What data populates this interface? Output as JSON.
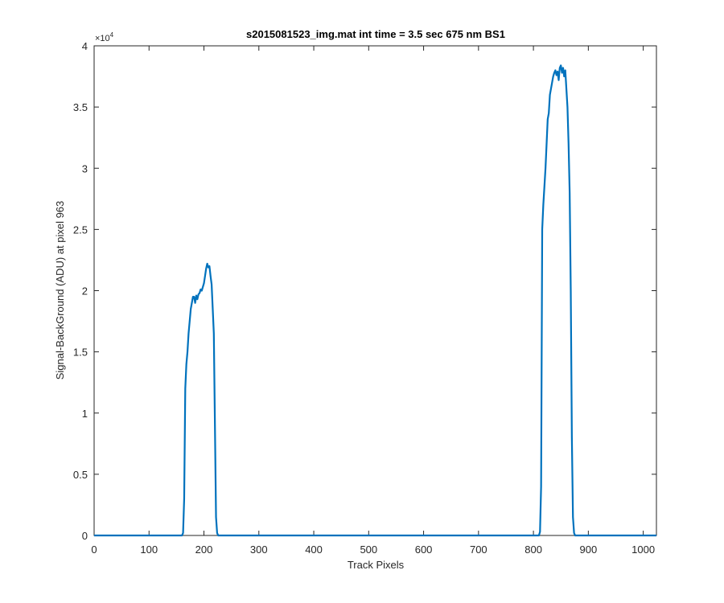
{
  "chart_data": {
    "type": "line",
    "title": "s2015081523_img.mat int time = 3.5 sec  675 nm BS1",
    "xlabel": "Track Pixels",
    "ylabel": "Signal-BackGround (ADU) at pixel 963",
    "y_multiplier_text": "×10",
    "y_multiplier_exp": "4",
    "xlim": [
      0,
      1024
    ],
    "ylim": [
      0,
      40000
    ],
    "x_ticks": [
      0,
      100,
      200,
      300,
      400,
      500,
      600,
      700,
      800,
      900,
      1000
    ],
    "x_tick_labels": [
      "0",
      "100",
      "200",
      "300",
      "400",
      "500",
      "600",
      "700",
      "800",
      "900",
      "1000"
    ],
    "y_ticks": [
      0,
      5000,
      10000,
      15000,
      20000,
      25000,
      30000,
      35000,
      40000
    ],
    "y_tick_labels": [
      "0",
      "0.5",
      "1",
      "1.5",
      "2",
      "2.5",
      "3",
      "3.5",
      "4"
    ],
    "grid": false,
    "line_color": "#0072BD",
    "series": [
      {
        "x": [
          0,
          100,
          160,
          162,
          164,
          166,
          168,
          170,
          172,
          174,
          176,
          178,
          180,
          182,
          184,
          186,
          188,
          190,
          192,
          194,
          196,
          198,
          200,
          202,
          204,
          206,
          208,
          210,
          212,
          214,
          216,
          218,
          220,
          222,
          224,
          226,
          228,
          230,
          260,
          400,
          600,
          800,
          810,
          812,
          814,
          816,
          818,
          820,
          822,
          824,
          826,
          828,
          830,
          832,
          834,
          836,
          838,
          840,
          842,
          844,
          846,
          848,
          850,
          852,
          854,
          856,
          858,
          860,
          862,
          864,
          866,
          868,
          870,
          872,
          874,
          876,
          878,
          880,
          900,
          1000,
          1024
        ],
        "y": [
          0,
          0,
          0,
          200,
          3000,
          12000,
          14000,
          15000,
          16500,
          17500,
          18500,
          19000,
          19500,
          19500,
          19000,
          19600,
          19300,
          19700,
          19800,
          20100,
          20000,
          20300,
          20600,
          21200,
          21800,
          22200,
          21900,
          22000,
          21200,
          20500,
          18500,
          16500,
          9000,
          1500,
          200,
          0,
          0,
          0,
          0,
          0,
          0,
          0,
          0,
          300,
          4000,
          25000,
          27000,
          28500,
          30000,
          32000,
          34000,
          34500,
          36000,
          36500,
          37000,
          37500,
          37800,
          38000,
          37600,
          37900,
          37200,
          38200,
          38400,
          37800,
          38200,
          37500,
          38000,
          36500,
          35000,
          32000,
          28000,
          20000,
          8000,
          1500,
          200,
          0,
          0,
          0,
          0,
          0,
          0
        ]
      }
    ]
  }
}
